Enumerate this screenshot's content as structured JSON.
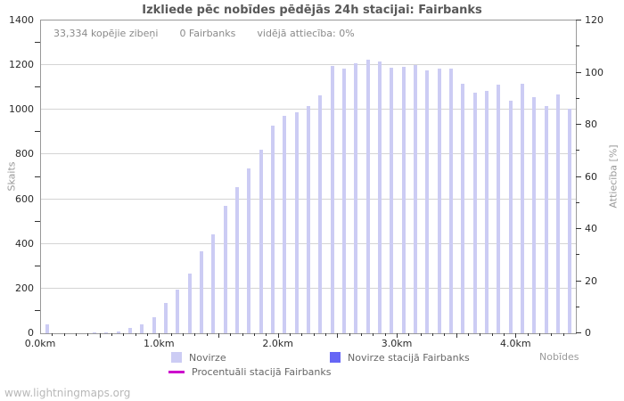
{
  "page": {
    "watermark": "www.lightningmaps.org"
  },
  "header_info": {
    "total_strikes": "33,334 kopējie zibeņi",
    "station_strikes": "0 Fairbanks",
    "avg_ratio": "vidējā attiecība: 0%"
  },
  "colors": {
    "bar_light": "#ccccf4",
    "bar_station": "#6666f5",
    "line_percent": "#cc00cc",
    "gridline": "#d4d4d4",
    "border": "#999999"
  },
  "chart_data": {
    "type": "bar",
    "title": "Izkliede pēc nobīdes pēdējās 24h stacijai: Fairbanks",
    "xlabel": "Nobīdes",
    "ylabel_left": "Skaits",
    "ylabel_right": "Attiecība [%]",
    "x_unit": "km",
    "bin_width_km": 0.1,
    "x_range_km": [
      0.0,
      4.5
    ],
    "ylim_left": [
      0,
      1400
    ],
    "ylim_right": [
      0,
      120
    ],
    "yticks_left": [
      0,
      200,
      400,
      600,
      800,
      1000,
      1200,
      1400
    ],
    "yticks_right": [
      0,
      20,
      40,
      60,
      80,
      100,
      120
    ],
    "xtick_labels": [
      {
        "km": 0.0,
        "label": "0.0km"
      },
      {
        "km": 1.0,
        "label": "1.0km"
      },
      {
        "km": 2.0,
        "label": "2.0km"
      },
      {
        "km": 3.0,
        "label": "3.0km"
      },
      {
        "km": 4.0,
        "label": "4.0km"
      }
    ],
    "grid": "horizontal",
    "legend_position": "bottom",
    "bins_km": [
      0.0,
      0.1,
      0.2,
      0.3,
      0.4,
      0.5,
      0.6,
      0.7,
      0.8,
      0.9,
      1.0,
      1.1,
      1.2,
      1.3,
      1.4,
      1.5,
      1.6,
      1.7,
      1.8,
      1.9,
      2.0,
      2.1,
      2.2,
      2.3,
      2.4,
      2.5,
      2.6,
      2.7,
      2.8,
      2.9,
      3.0,
      3.1,
      3.2,
      3.3,
      3.4,
      3.5,
      3.6,
      3.7,
      3.8,
      3.9,
      4.0,
      4.1,
      4.2,
      4.3,
      4.4
    ],
    "series": [
      {
        "name": "Novirze",
        "type": "bar",
        "axis": "left",
        "color": "#ccccf4",
        "values": [
          40,
          0,
          0,
          0,
          4,
          6,
          8,
          22,
          40,
          72,
          135,
          195,
          266,
          367,
          441,
          572,
          655,
          739,
          820,
          930,
          973,
          990,
          1017,
          1066,
          1195,
          1183,
          1207,
          1223,
          1218,
          1190,
          1191,
          1202,
          1175,
          1186,
          1183,
          1118,
          1076,
          1086,
          1112,
          1043,
          1115,
          1059,
          1017,
          1068,
          1005
        ]
      },
      {
        "name": "Novirze stacijā Fairbanks",
        "type": "bar",
        "axis": "left",
        "color": "#6666f5",
        "values": [
          0,
          0,
          0,
          0,
          0,
          0,
          0,
          0,
          0,
          0,
          0,
          0,
          0,
          0,
          0,
          0,
          0,
          0,
          0,
          0,
          0,
          0,
          0,
          0,
          0,
          0,
          0,
          0,
          0,
          0,
          0,
          0,
          0,
          0,
          0,
          0,
          0,
          0,
          0,
          0,
          0,
          0,
          0,
          0,
          0
        ]
      },
      {
        "name": "Procentuāli stacijā Fairbanks",
        "type": "line",
        "axis": "right",
        "color": "#cc00cc",
        "values": [
          0,
          0,
          0,
          0,
          0,
          0,
          0,
          0,
          0,
          0,
          0,
          0,
          0,
          0,
          0,
          0,
          0,
          0,
          0,
          0,
          0,
          0,
          0,
          0,
          0,
          0,
          0,
          0,
          0,
          0,
          0,
          0,
          0,
          0,
          0,
          0,
          0,
          0,
          0,
          0,
          0,
          0,
          0,
          0,
          0
        ]
      }
    ]
  }
}
